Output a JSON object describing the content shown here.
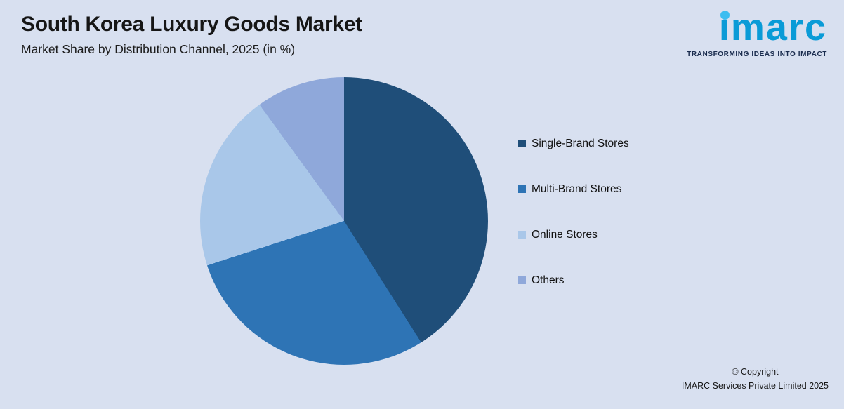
{
  "page": {
    "background": "#d8e0f0"
  },
  "header": {
    "title": "South Korea Luxury Goods Market",
    "subtitle": "Market Share by Distribution Channel, 2025 (in %)"
  },
  "logo": {
    "brand": "imarc",
    "tagline": "TRANSFORMING IDEAS INTO IMPACT",
    "brand_color": "#0a9bd7",
    "dot_color": "#3cbdf0",
    "tagline_color": "#1a2c4e"
  },
  "chart_data": {
    "type": "pie",
    "title": "South Korea Luxury Goods Market",
    "subtitle": "Market Share by Distribution Channel, 2025 (in %)",
    "unit": "%",
    "start_angle_deg": 0,
    "direction": "clockwise",
    "legend_position": "right",
    "data_labels_shown": false,
    "slices": [
      {
        "label": "Single-Brand Stores",
        "value": 41,
        "color": "#1f4e79"
      },
      {
        "label": "Multi-Brand Stores",
        "value": 29,
        "color": "#2e74b5"
      },
      {
        "label": "Online Stores",
        "value": 20,
        "color": "#a9c7e9"
      },
      {
        "label": "Others",
        "value": 10,
        "color": "#8fa8da"
      }
    ]
  },
  "footer": {
    "copyright_line1": "© Copyright",
    "copyright_line2": "IMARC Services Private Limited 2025"
  }
}
